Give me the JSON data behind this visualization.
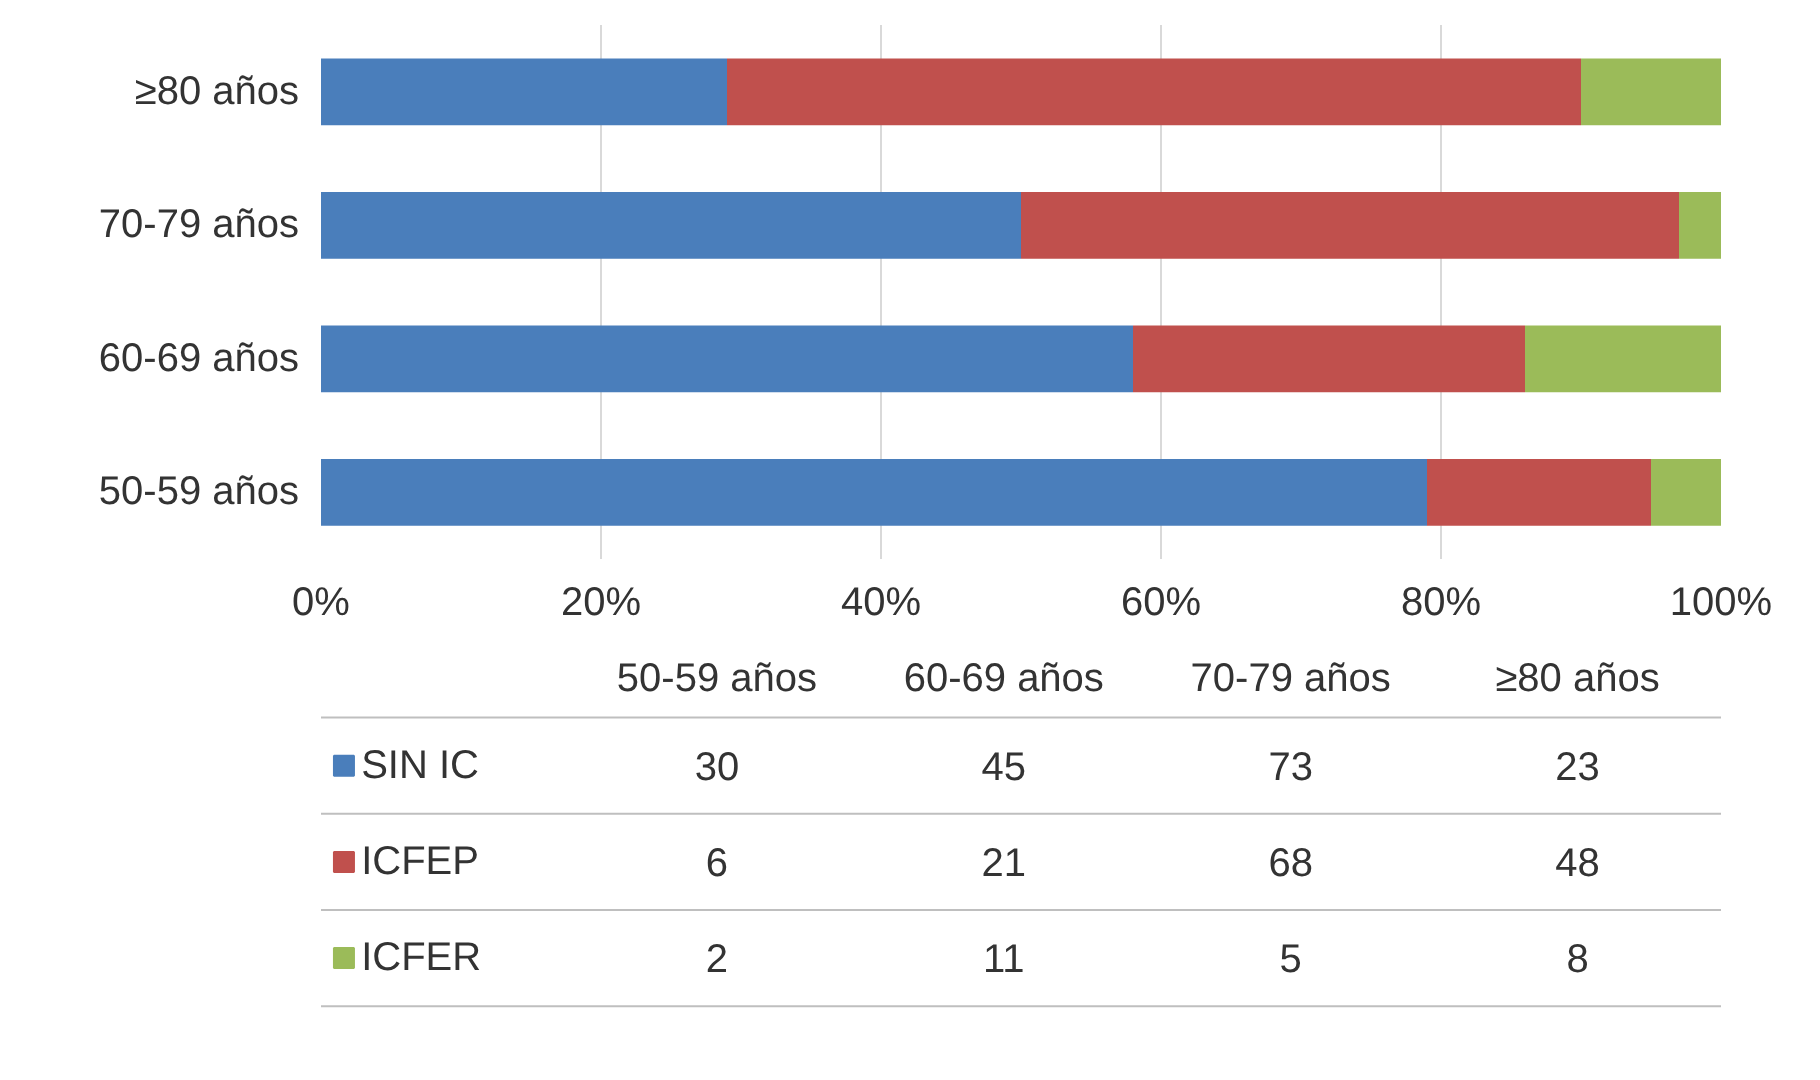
{
  "chart_data": [
    {
      "type": "bar",
      "orientation": "horizontal",
      "stacked": true,
      "categories": [
        "≥80 años",
        "70-79 años",
        "60-69 años",
        "50-59 años"
      ],
      "series": [
        {
          "color": "#4a7ebb",
          "values": [
            29,
            50,
            58,
            79
          ]
        },
        {
          "color": "#c0504d",
          "values": [
            61,
            47,
            28,
            16
          ]
        },
        {
          "color": "#9bbb59",
          "values": [
            10,
            3,
            14,
            5
          ]
        }
      ],
      "xlim": [
        0,
        100
      ],
      "xticks": [
        {
          "value": 0,
          "label": "0%"
        },
        {
          "value": 20,
          "label": "20%"
        },
        {
          "value": 40,
          "label": "40%"
        },
        {
          "value": 60,
          "label": "60%"
        },
        {
          "value": 80,
          "label": "80%"
        },
        {
          "value": 100,
          "label": "100%"
        }
      ],
      "grid": "x"
    },
    {
      "type": "other",
      "categories": [
        "50-59 años",
        "60-69 años",
        "70-79 años",
        "≥80 años"
      ],
      "series": [
        {
          "name": "SIN IC",
          "color": "#4a7ebb",
          "values": [
            30,
            45,
            73,
            23
          ]
        },
        {
          "name": "ICFEP",
          "color": "#c0504d",
          "values": [
            6,
            21,
            68,
            48
          ]
        },
        {
          "name": "ICFER",
          "color": "#9bbb59",
          "values": [
            2,
            11,
            5,
            8
          ]
        }
      ],
      "legend": "left",
      "data_labels": true
    }
  ]
}
